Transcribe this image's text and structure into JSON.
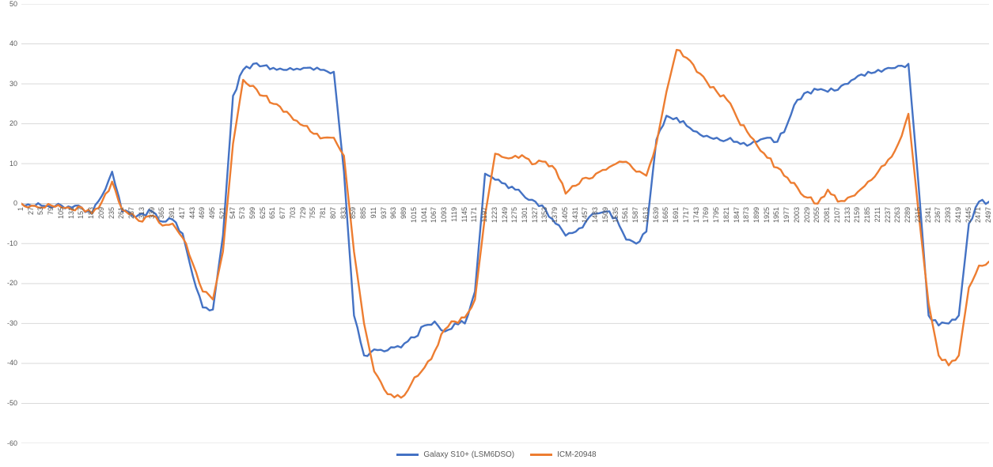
{
  "chart": {
    "background": "#FFFFFF",
    "gridline_color": "#D9D9D9",
    "axis_line_color": "#BFBFBF",
    "tick_label_color": "#595959",
    "legend_items": [
      {
        "label": "Galaxy S10+ (LSM6DSO)",
        "color": "#4472C4"
      },
      {
        "label": "ICM-20948",
        "color": "#ED7D31"
      }
    ]
  },
  "chart_data": {
    "type": "line",
    "title": "",
    "xlabel": "",
    "ylabel": "",
    "grid": true,
    "legend_position": "bottom",
    "ylim": [
      -60,
      50
    ],
    "ytick_step": 10,
    "y_ticks": [
      50,
      40,
      30,
      20,
      10,
      0,
      -10,
      -20,
      -30,
      -40,
      -50,
      -60
    ],
    "x": [
      1,
      27,
      53,
      79,
      105,
      131,
      157,
      183,
      209,
      235,
      261,
      287,
      313,
      339,
      365,
      391,
      417,
      443,
      469,
      495,
      521,
      547,
      573,
      599,
      625,
      651,
      677,
      703,
      729,
      755,
      781,
      807,
      833,
      859,
      885,
      911,
      937,
      963,
      989,
      1015,
      1041,
      1067,
      1093,
      1119,
      1145,
      1171,
      1197,
      1223,
      1249,
      1275,
      1301,
      1327,
      1353,
      1379,
      1405,
      1431,
      1457,
      1483,
      1509,
      1535,
      1561,
      1587,
      1613,
      1639,
      1665,
      1691,
      1717,
      1743,
      1769,
      1795,
      1821,
      1847,
      1873,
      1899,
      1925,
      1951,
      1977,
      2003,
      2029,
      2055,
      2081,
      2107,
      2133,
      2159,
      2185,
      2211,
      2237,
      2263,
      2289,
      2315,
      2341,
      2367,
      2393,
      2419,
      2445,
      2471,
      2497
    ],
    "series": [
      {
        "name": "Galaxy S10+ (LSM6DSO)",
        "color": "#4472C4",
        "values": [
          0,
          -0.5,
          -0.5,
          -1,
          -0.5,
          -1,
          -1,
          -2.5,
          2,
          8,
          -2,
          -3,
          -2.5,
          -2,
          -4.5,
          -4,
          -7.5,
          -18,
          -26,
          -26.5,
          -8,
          27,
          33.5,
          35,
          34.5,
          34,
          33.5,
          33.5,
          34,
          33.5,
          33.5,
          33,
          8,
          -28,
          -38,
          -36.5,
          -37,
          -36,
          -35,
          -33.5,
          -30.5,
          -29.5,
          -32,
          -30,
          -30,
          -22,
          7.5,
          6,
          5,
          3.5,
          1.5,
          0.5,
          -1.5,
          -5,
          -8,
          -7,
          -4.5,
          -2.5,
          -2,
          -3.5,
          -9,
          -10,
          -7,
          16,
          22,
          21.5,
          19.5,
          18,
          17,
          16.5,
          16,
          15.5,
          14.5,
          15.5,
          16.5,
          15.5,
          20,
          26,
          28,
          28.5,
          28,
          28.5,
          30,
          32,
          33,
          33.5,
          34,
          34.5,
          35,
          5,
          -28,
          -30.5,
          -30,
          -28,
          -5,
          0.5,
          0.5
        ]
      },
      {
        "name": "ICM-20948",
        "color": "#ED7D31",
        "values": [
          0,
          -0.5,
          -1,
          -0.5,
          -1,
          -1.5,
          -1,
          -2.5,
          0.5,
          5.5,
          -1.5,
          -2.5,
          -4.5,
          -3,
          -5.5,
          -5,
          -8.5,
          -15,
          -22,
          -24,
          -12,
          15,
          31,
          29.5,
          27,
          25,
          23,
          21,
          19.5,
          17.5,
          16.5,
          16.5,
          12,
          -12,
          -30,
          -42,
          -46.5,
          -48.5,
          -48,
          -43.5,
          -41,
          -37,
          -31.5,
          -29.5,
          -28.5,
          -24,
          -3,
          12.5,
          11.5,
          12,
          11.5,
          10,
          10.5,
          8.5,
          2.5,
          4.5,
          6.5,
          7.5,
          8.5,
          10,
          10.5,
          8,
          7,
          15,
          28,
          38.5,
          36.5,
          33,
          30.5,
          28,
          26,
          21.5,
          18,
          14.5,
          11.5,
          9,
          6.5,
          4,
          1.5,
          0,
          3.5,
          0.5,
          1.5,
          3,
          5.5,
          8,
          11,
          15,
          22.5,
          -2,
          -25,
          -38,
          -40.5,
          -38,
          -21,
          -15.5,
          -14.5
        ]
      }
    ]
  }
}
